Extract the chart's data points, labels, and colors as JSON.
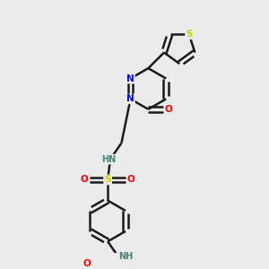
{
  "background_color": "#ebebeb",
  "bond_color": "#1a1a1a",
  "atom_colors": {
    "N": "#0000ff",
    "O": "#ff0000",
    "S": "#cccc00",
    "H": "#4a8080",
    "C": "#1a1a1a"
  },
  "figsize": [
    3.0,
    3.0
  ],
  "dpi": 100,
  "xlim": [
    0,
    10
  ],
  "ylim": [
    0,
    10
  ]
}
